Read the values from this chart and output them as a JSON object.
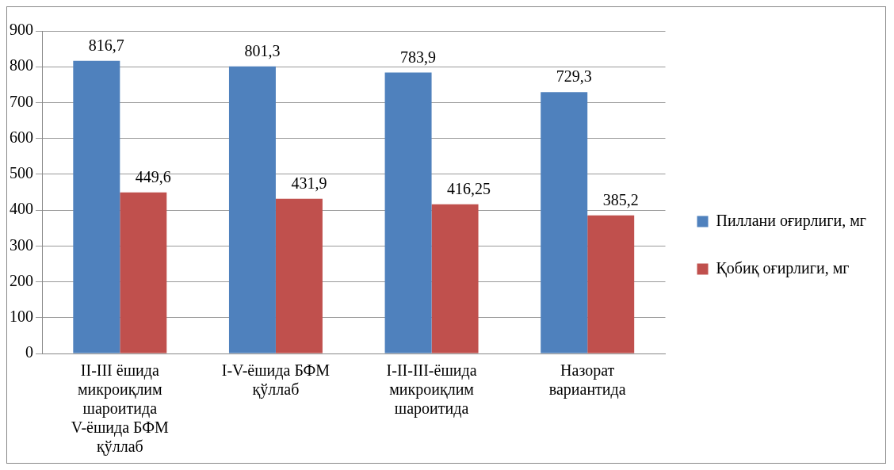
{
  "chart_data": {
    "type": "bar",
    "categories": [
      "II-III ёшида микроиқлим шароитида V-ёшида БФМ қўллаб",
      "I-V-ёшида БФМ қўллаб",
      "I-II-III-ёшида микроиқлим шароитида",
      "Назорат вариантида"
    ],
    "series": [
      {
        "name": "Пиллани оғирлиги, мг",
        "color": "#4f81bd",
        "values": [
          816.7,
          801.3,
          783.9,
          729.3
        ],
        "value_labels": [
          "816,7",
          "801,3",
          "783,9",
          "729,3"
        ]
      },
      {
        "name": "Қобиқ оғирлиги, мг",
        "color": "#c0504d",
        "values": [
          449.6,
          431.9,
          416.25,
          385.2
        ],
        "value_labels": [
          "449,6",
          "431,9",
          "416,25",
          "385,2"
        ]
      }
    ],
    "ylim": [
      0,
      900
    ],
    "yticks": [
      0,
      100,
      200,
      300,
      400,
      500,
      600,
      700,
      800,
      900
    ],
    "grid": "y",
    "legend": "right"
  }
}
